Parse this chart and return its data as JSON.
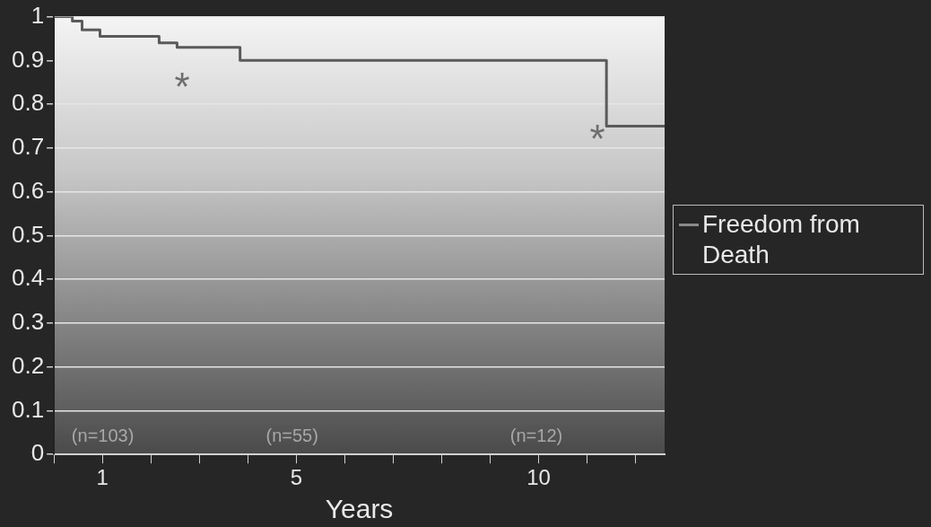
{
  "chart_data": {
    "type": "step",
    "xlabel": "Years",
    "x": [
      0,
      0.38,
      0.58,
      0.95,
      2.17,
      2.54,
      3.84,
      11.4,
      12.6
    ],
    "series": [
      {
        "name": "Freedom from Death",
        "color": "#5a5a5a",
        "values": [
          1,
          0.99,
          0.97,
          0.955,
          0.94,
          0.93,
          0.9,
          0.75,
          0.75
        ]
      }
    ],
    "xlim": [
      0,
      12.6
    ],
    "xticks": [
      {
        "value": 0,
        "label": null
      },
      1,
      {
        "value": 2,
        "label": null
      },
      {
        "value": 3,
        "label": null
      },
      {
        "value": 4,
        "label": null
      },
      5,
      {
        "value": 6,
        "label": null
      },
      {
        "value": 7,
        "label": null
      },
      {
        "value": 8,
        "label": null
      },
      {
        "value": 9,
        "label": null
      },
      10,
      {
        "value": 11,
        "label": null
      },
      {
        "value": 12,
        "label": null
      }
    ],
    "ylim": [
      0,
      1
    ],
    "yticks": [
      0,
      0.1,
      0.2,
      0.3,
      0.4,
      0.5,
      0.6,
      0.7,
      0.8,
      0.9,
      1
    ],
    "grid": "y",
    "legend": "right",
    "annotations": [
      "*",
      "*",
      "(n=103)",
      "(n=55)",
      "(n=12)"
    ]
  }
}
